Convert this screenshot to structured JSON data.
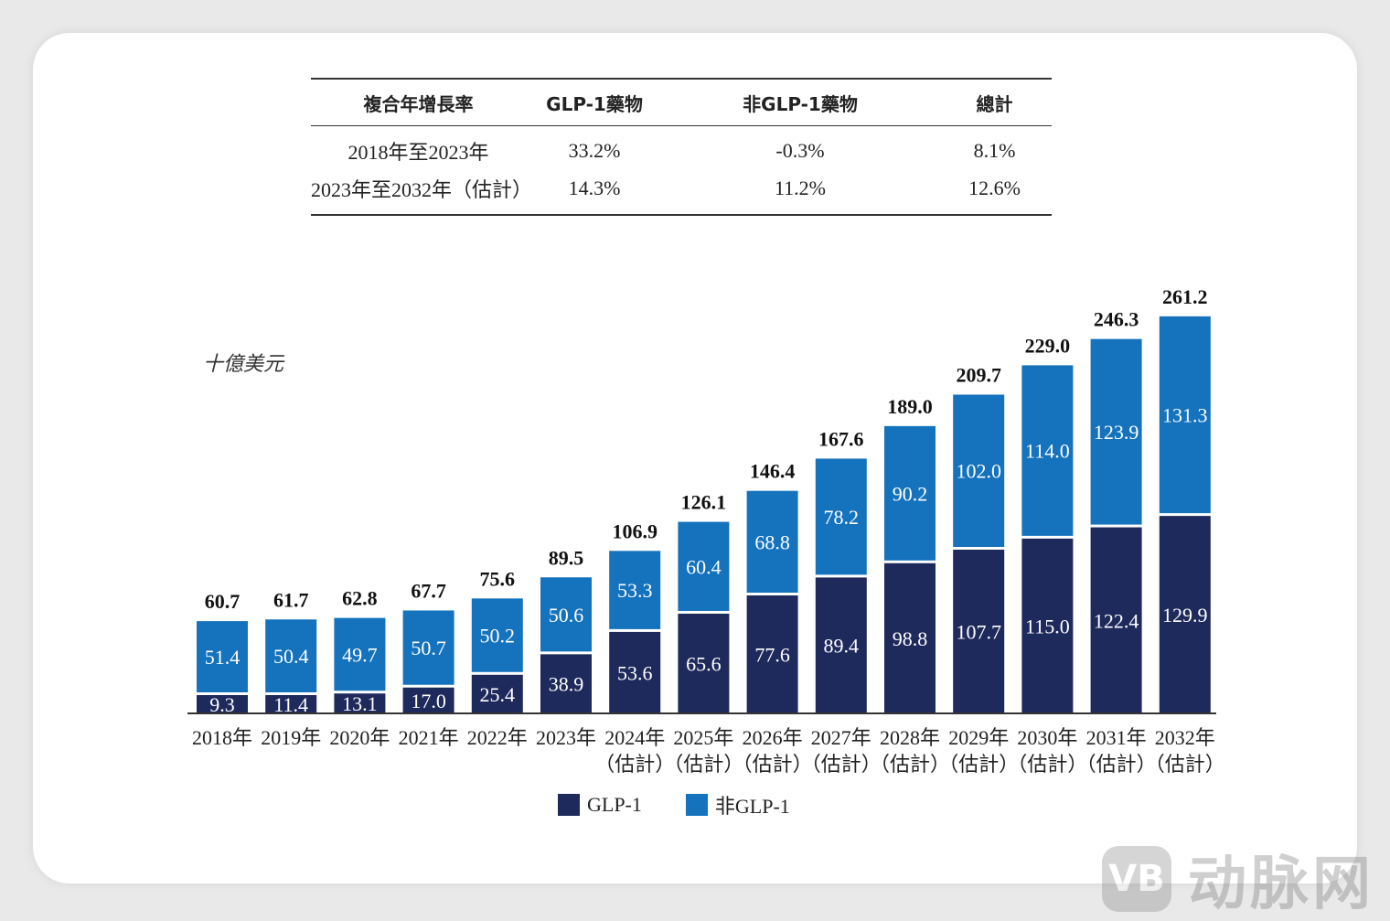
{
  "cagr_table": {
    "headers": [
      "複合年增長率",
      "GLP-1藥物",
      "非GLP-1藥物",
      "總計"
    ],
    "rows": [
      [
        "2018年至2023年",
        "33.2%",
        "-0.3%",
        "8.1%"
      ],
      [
        "2023年至2032年（估計）",
        "14.3%",
        "11.2%",
        "12.6%"
      ]
    ]
  },
  "chart_data": {
    "type": "bar",
    "stacked": true,
    "ylabel": "十億美元",
    "categories": [
      "2018年",
      "2019年",
      "2020年",
      "2021年",
      "2022年",
      "2023年",
      "2024年",
      "2025年",
      "2026年",
      "2027年",
      "2028年",
      "2029年",
      "2030年",
      "2031年",
      "2032年"
    ],
    "category_sublabels": [
      "",
      "",
      "",
      "",
      "",
      "",
      "（估計）",
      "（估計）",
      "（估計）",
      "（估計）",
      "（估計）",
      "（估計）",
      "（估計）",
      "（估計）",
      "（估計）"
    ],
    "series": [
      {
        "name": "GLP-1",
        "color": "#1f2a5c",
        "values": [
          9.3,
          11.4,
          13.1,
          17.0,
          25.4,
          38.9,
          53.6,
          65.6,
          77.6,
          89.4,
          98.8,
          107.7,
          115.0,
          122.4,
          129.9
        ]
      },
      {
        "name": "非GLP-1",
        "color": "#1572bd",
        "values": [
          51.4,
          50.4,
          49.7,
          50.7,
          50.2,
          50.6,
          53.3,
          60.4,
          68.8,
          78.2,
          90.2,
          102.0,
          114.0,
          123.9,
          131.3
        ]
      }
    ],
    "totals": [
      "60.7",
      "61.7",
      "62.8",
      "67.7",
      "75.6",
      "89.5",
      "106.9",
      "126.1",
      "146.4",
      "167.6",
      "189.0",
      "209.7",
      "229.0",
      "246.3",
      "261.2"
    ],
    "grid": false,
    "legend_placement": "bottom"
  },
  "watermark": {
    "logo": "VB",
    "text": "动脉网"
  }
}
